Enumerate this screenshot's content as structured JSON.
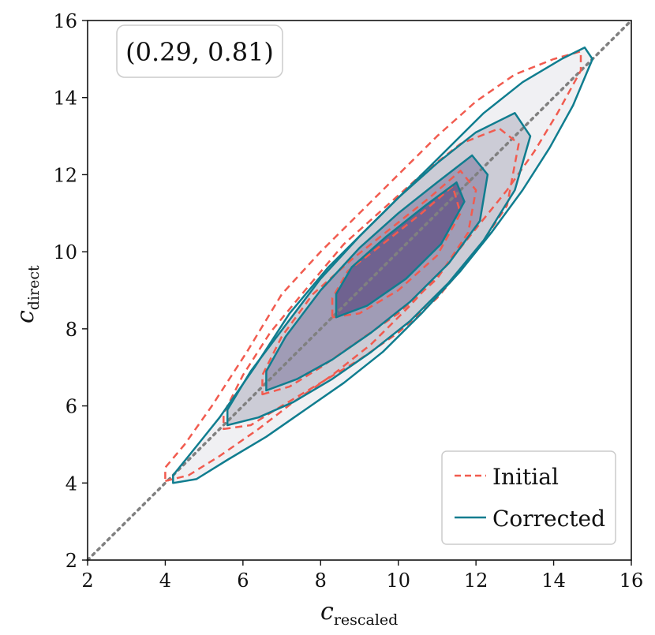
{
  "chart_data": {
    "type": "contour",
    "xlabel_main": "c",
    "xlabel_sub": "rescaled",
    "ylabel_main": "c",
    "ylabel_sub": "direct",
    "xlim": [
      2,
      16
    ],
    "ylim": [
      2,
      16
    ],
    "xticks": [
      "2",
      "4",
      "6",
      "8",
      "10",
      "12",
      "14",
      "16"
    ],
    "yticks": [
      "2",
      "4",
      "6",
      "8",
      "10",
      "12",
      "14",
      "16"
    ],
    "annotation": "(0.29, 0.81)",
    "reference_line": {
      "style": "dotted",
      "color": "#808080",
      "from": [
        2,
        2
      ],
      "to": [
        16,
        16
      ]
    },
    "legend": {
      "placement": "lower-right",
      "entries": [
        "Initial",
        "Corrected"
      ]
    },
    "series": [
      {
        "name": "Initial",
        "style": "dashed",
        "color": "#F15B4F",
        "levels": [
          [
            [
              4.0,
              4.05
            ],
            [
              4.6,
              4.2
            ],
            [
              5.4,
              4.7
            ],
            [
              6.4,
              5.4
            ],
            [
              7.3,
              6.1
            ],
            [
              8.3,
              6.8
            ],
            [
              9.3,
              7.6
            ],
            [
              10.3,
              8.6
            ],
            [
              11.2,
              9.6
            ],
            [
              12.0,
              10.6
            ],
            [
              12.8,
              11.6
            ],
            [
              13.5,
              12.6
            ],
            [
              14.1,
              13.6
            ],
            [
              14.7,
              14.7
            ],
            [
              14.7,
              15.2
            ],
            [
              14.0,
              15.0
            ],
            [
              13.0,
              14.6
            ],
            [
              12.0,
              13.9
            ],
            [
              11.0,
              13.0
            ],
            [
              10.0,
              12.0
            ],
            [
              9.0,
              11.0
            ],
            [
              8.0,
              10.0
            ],
            [
              7.0,
              8.9
            ],
            [
              6.1,
              7.4
            ],
            [
              5.2,
              6.0
            ],
            [
              4.5,
              5.0
            ],
            [
              4.0,
              4.4
            ]
          ],
          [
            [
              5.5,
              5.4
            ],
            [
              6.2,
              5.5
            ],
            [
              7.0,
              6.0
            ],
            [
              8.0,
              6.6
            ],
            [
              9.0,
              7.2
            ],
            [
              10.0,
              7.9
            ],
            [
              11.0,
              8.8
            ],
            [
              12.0,
              10.0
            ],
            [
              12.8,
              11.2
            ],
            [
              13.1,
              12.8
            ],
            [
              12.6,
              13.2
            ],
            [
              11.6,
              12.8
            ],
            [
              10.6,
              12.0
            ],
            [
              9.6,
              11.1
            ],
            [
              8.6,
              10.2
            ],
            [
              7.6,
              9.0
            ],
            [
              6.7,
              7.9
            ],
            [
              6.0,
              6.8
            ],
            [
              5.5,
              5.8
            ]
          ],
          [
            [
              6.5,
              6.3
            ],
            [
              7.2,
              6.5
            ],
            [
              8.0,
              7.0
            ],
            [
              9.0,
              7.7
            ],
            [
              10.0,
              8.4
            ],
            [
              11.0,
              9.3
            ],
            [
              11.8,
              10.5
            ],
            [
              12.0,
              11.6
            ],
            [
              11.6,
              12.1
            ],
            [
              10.8,
              11.4
            ],
            [
              9.8,
              10.6
            ],
            [
              8.8,
              9.8
            ],
            [
              7.8,
              8.9
            ],
            [
              7.0,
              7.8
            ],
            [
              6.5,
              6.8
            ]
          ],
          [
            [
              8.3,
              8.3
            ],
            [
              9.0,
              8.4
            ],
            [
              10.0,
              9.0
            ],
            [
              11.0,
              9.9
            ],
            [
              11.6,
              11.0
            ],
            [
              11.4,
              11.7
            ],
            [
              10.6,
              11.0
            ],
            [
              9.6,
              10.2
            ],
            [
              8.7,
              9.5
            ],
            [
              8.3,
              8.8
            ]
          ]
        ]
      },
      {
        "name": "Corrected",
        "style": "solid",
        "color": "#107D8F",
        "levels": [
          [
            [
              4.2,
              4.0
            ],
            [
              4.8,
              4.1
            ],
            [
              5.6,
              4.6
            ],
            [
              6.6,
              5.2
            ],
            [
              7.6,
              5.9
            ],
            [
              8.6,
              6.6
            ],
            [
              9.6,
              7.4
            ],
            [
              10.6,
              8.4
            ],
            [
              11.6,
              9.5
            ],
            [
              12.4,
              10.5
            ],
            [
              13.2,
              11.6
            ],
            [
              13.9,
              12.7
            ],
            [
              14.5,
              13.8
            ],
            [
              15.0,
              15.0
            ],
            [
              14.8,
              15.3
            ],
            [
              14.2,
              15.0
            ],
            [
              13.2,
              14.4
            ],
            [
              12.2,
              13.6
            ],
            [
              11.2,
              12.6
            ],
            [
              10.2,
              11.6
            ],
            [
              9.2,
              10.6
            ],
            [
              8.2,
              9.6
            ],
            [
              7.2,
              8.4
            ],
            [
              6.3,
              7.0
            ],
            [
              5.4,
              5.7
            ],
            [
              4.6,
              4.7
            ],
            [
              4.2,
              4.2
            ]
          ],
          [
            [
              5.6,
              5.5
            ],
            [
              6.4,
              5.7
            ],
            [
              7.3,
              6.1
            ],
            [
              8.3,
              6.7
            ],
            [
              9.3,
              7.4
            ],
            [
              10.3,
              8.2
            ],
            [
              11.3,
              9.2
            ],
            [
              12.2,
              10.3
            ],
            [
              13.0,
              11.6
            ],
            [
              13.4,
              13.0
            ],
            [
              13.0,
              13.6
            ],
            [
              12.0,
              13.1
            ],
            [
              11.0,
              12.3
            ],
            [
              10.0,
              11.4
            ],
            [
              9.0,
              10.4
            ],
            [
              8.0,
              9.3
            ],
            [
              7.1,
              8.1
            ],
            [
              6.2,
              6.9
            ],
            [
              5.6,
              5.9
            ]
          ],
          [
            [
              6.6,
              6.4
            ],
            [
              7.4,
              6.7
            ],
            [
              8.3,
              7.2
            ],
            [
              9.3,
              7.9
            ],
            [
              10.3,
              8.7
            ],
            [
              11.3,
              9.7
            ],
            [
              12.1,
              10.8
            ],
            [
              12.3,
              12.0
            ],
            [
              11.9,
              12.5
            ],
            [
              11.0,
              11.8
            ],
            [
              10.0,
              11.0
            ],
            [
              9.0,
              10.1
            ],
            [
              8.0,
              9.0
            ],
            [
              7.1,
              7.8
            ],
            [
              6.6,
              6.9
            ]
          ],
          [
            [
              8.4,
              8.3
            ],
            [
              9.2,
              8.6
            ],
            [
              10.2,
              9.3
            ],
            [
              11.1,
              10.2
            ],
            [
              11.7,
              11.3
            ],
            [
              11.5,
              11.8
            ],
            [
              10.7,
              11.2
            ],
            [
              9.7,
              10.4
            ],
            [
              8.8,
              9.6
            ],
            [
              8.4,
              8.9
            ]
          ]
        ]
      }
    ]
  },
  "colors": {
    "fill_levels": [
      "#EFEFF2",
      "#C9C9D4",
      "#9D99B4",
      "#6D5F8E"
    ],
    "initial": "#F15B4F",
    "corrected": "#107D8F"
  }
}
